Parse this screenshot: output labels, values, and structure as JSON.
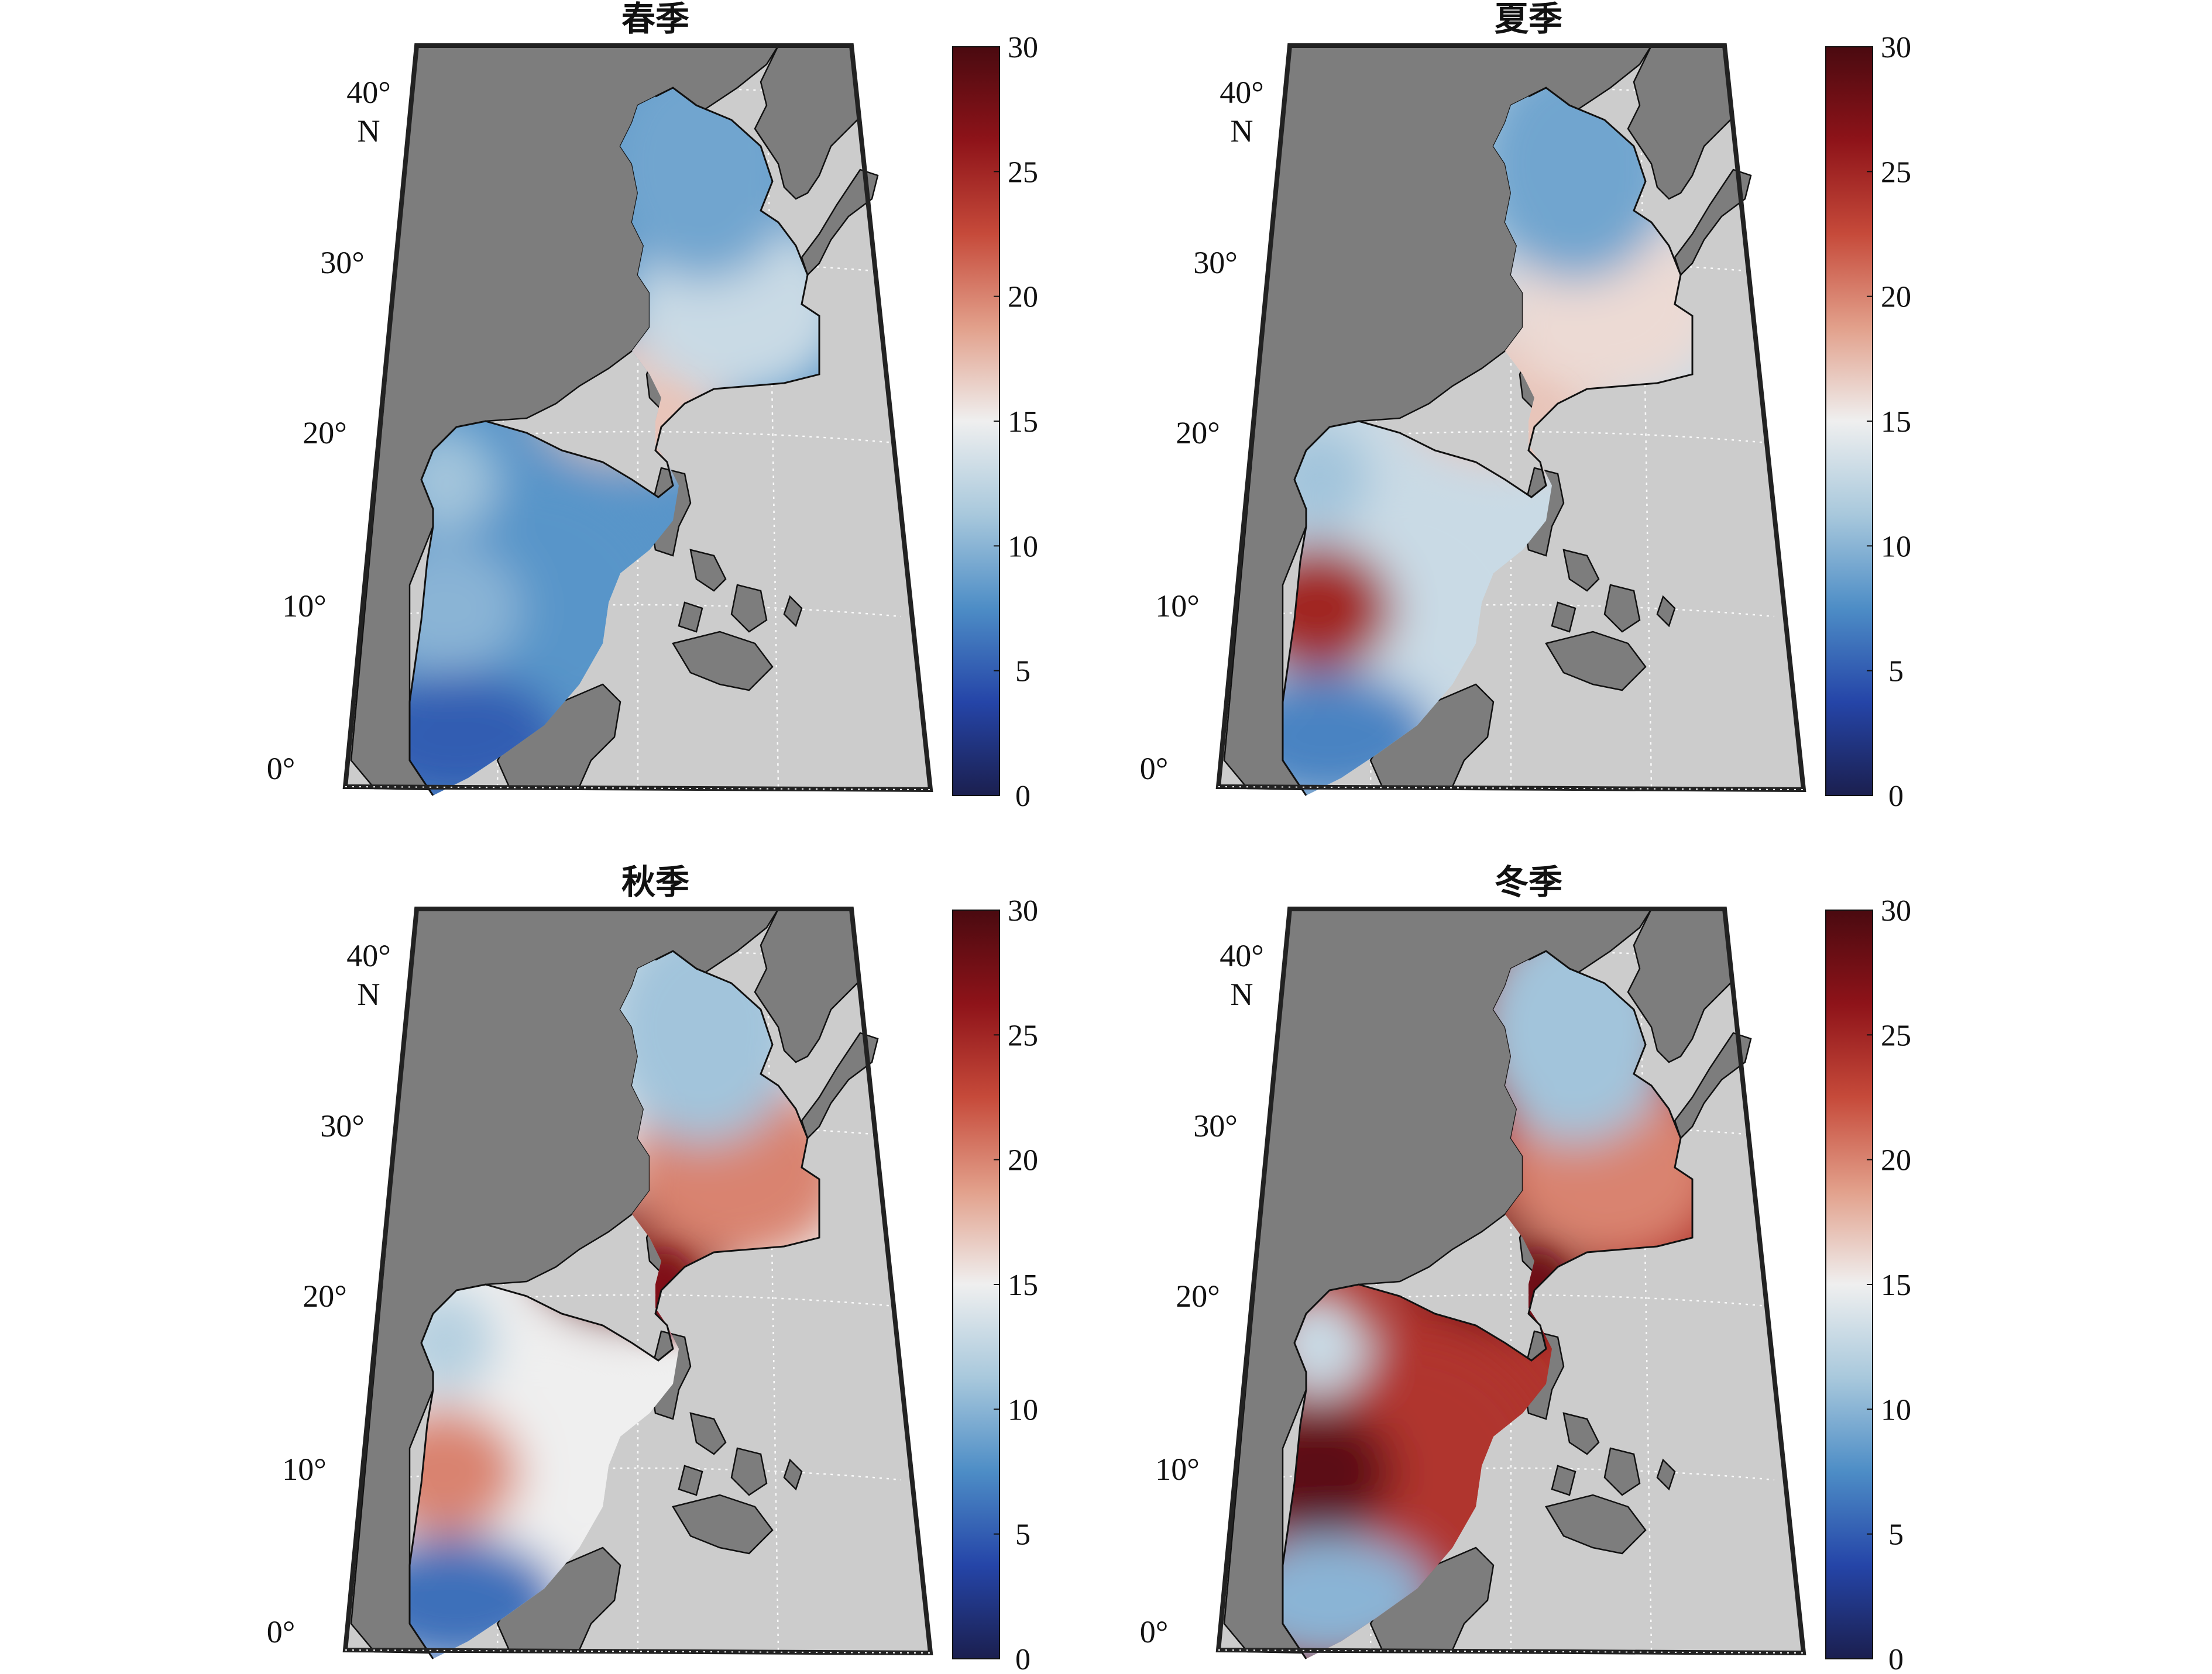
{
  "figure": {
    "panels": [
      {
        "title": "春季",
        "field": {
          "south_sea": 8,
          "taiwan_strait": 17,
          "east_china_sea": 13,
          "yellow_bohai": 9,
          "gulf_tonkin": 11,
          "vietnam_coast": 10,
          "sunda_south": 5
        }
      },
      {
        "title": "夏季",
        "field": {
          "south_sea": 13,
          "taiwan_strait": 17,
          "east_china_sea": 16,
          "yellow_bohai": 9,
          "gulf_tonkin": 11,
          "vietnam_coast": 25,
          "sunda_south": 7
        }
      },
      {
        "title": "秋季",
        "field": {
          "south_sea": 15,
          "taiwan_strait": 27,
          "east_china_sea": 20,
          "yellow_bohai": 11,
          "gulf_tonkin": 12,
          "vietnam_coast": 20,
          "sunda_south": 6
        }
      },
      {
        "title": "冬季",
        "field": {
          "south_sea": 24,
          "taiwan_strait": 28,
          "east_china_sea": 20,
          "yellow_bohai": 11,
          "gulf_tonkin": 13,
          "vietnam_coast": 29,
          "sunda_south": 10
        }
      }
    ],
    "lat_labels": [
      "40°",
      "N",
      "30°",
      "20°",
      "10°",
      "0°"
    ],
    "colorbar": {
      "min": 0,
      "max": 30,
      "ticks": [
        "30",
        "25",
        "20",
        "15",
        "10",
        "5",
        "0"
      ],
      "colors": [
        "#1b1f4f",
        "#2545a8",
        "#4d8dc6",
        "#a8c8dc",
        "#efefef",
        "#e2a08b",
        "#c64a3a",
        "#8e1319",
        "#4a0a10"
      ]
    },
    "map_colors": {
      "land": "#7d7d7d",
      "ocean": "#cccccc",
      "frame": "#222222"
    }
  }
}
